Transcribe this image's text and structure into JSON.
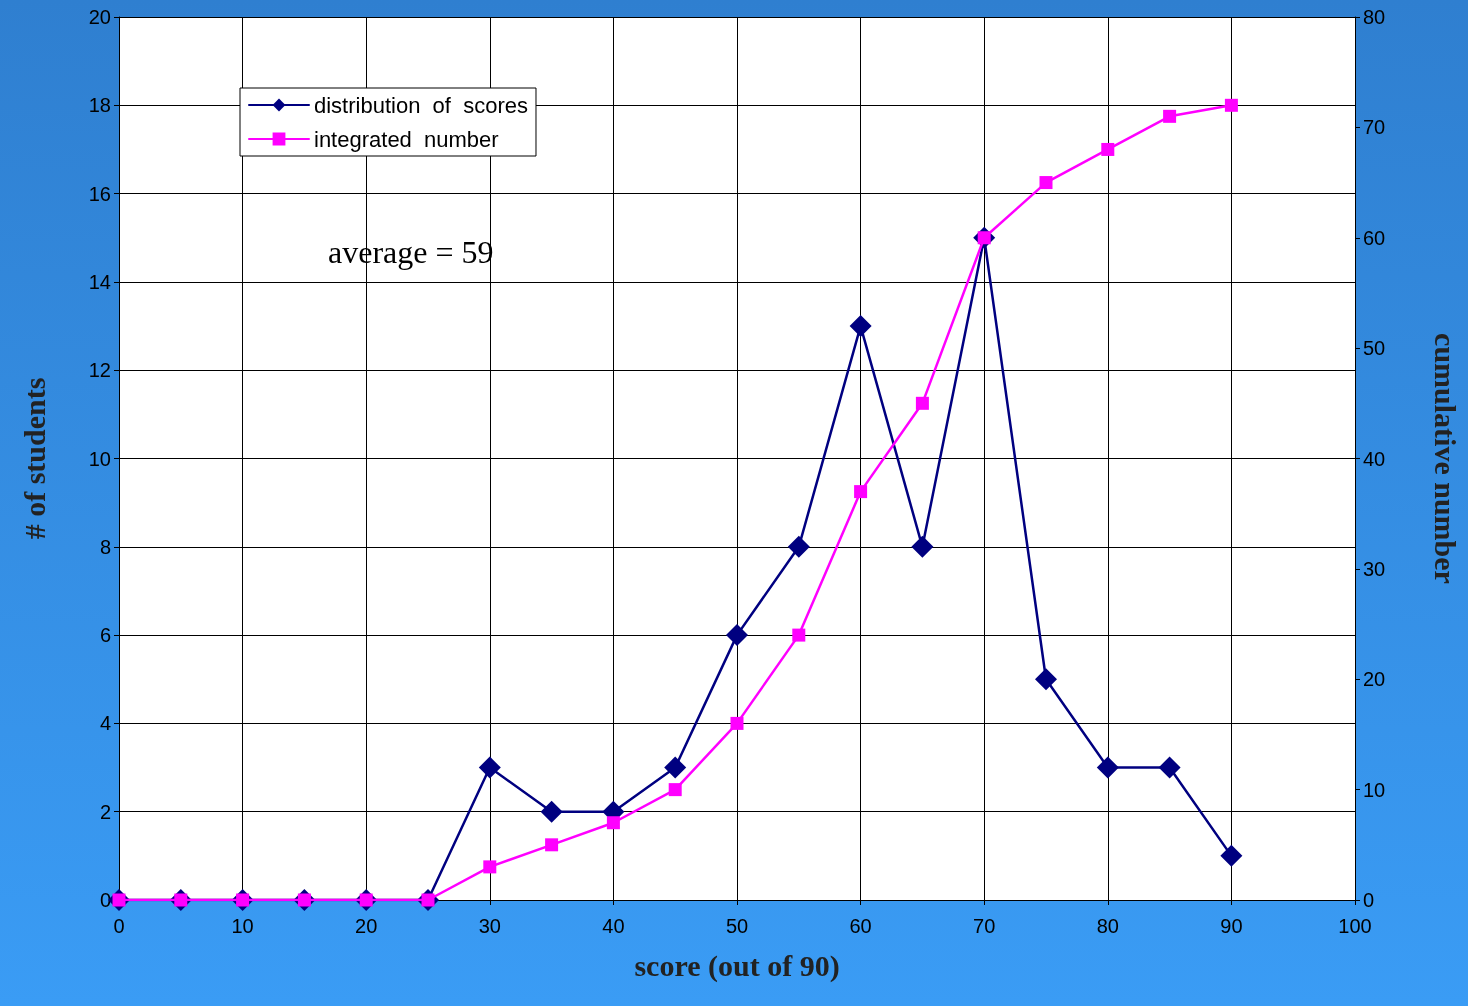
{
  "chart_data": {
    "type": "line",
    "xlabel": "score (out of 90)",
    "ylabel": "# of students",
    "y2label": "cumulative number",
    "x": [
      0,
      5,
      10,
      15,
      20,
      25,
      30,
      35,
      40,
      45,
      50,
      55,
      60,
      65,
      70,
      75,
      80,
      85,
      90
    ],
    "series": [
      {
        "name": "distribution  of  scores",
        "color": "#000080",
        "marker": "diamond",
        "values": [
          0,
          0,
          0,
          0,
          0,
          0,
          3,
          2,
          2,
          3,
          6,
          8,
          13,
          8,
          15,
          5,
          3,
          3,
          1
        ]
      },
      {
        "name": "integrated  number",
        "color": "#ff00ff",
        "marker": "square",
        "axis": "y2",
        "values": [
          0,
          0,
          0,
          0,
          0,
          0,
          3,
          5,
          7,
          10,
          16,
          24,
          37,
          45,
          60,
          65,
          68,
          71,
          72
        ]
      }
    ],
    "xlim": [
      0,
      100
    ],
    "xticks": [
      0,
      10,
      20,
      30,
      40,
      50,
      60,
      70,
      80,
      90,
      100
    ],
    "ylim": [
      0,
      20
    ],
    "yticks": [
      0,
      2,
      4,
      6,
      8,
      10,
      12,
      14,
      16,
      18,
      20
    ],
    "y2lim": [
      0,
      80
    ],
    "y2ticks": [
      0,
      10,
      20,
      30,
      40,
      50,
      60,
      70,
      80
    ],
    "annotations": [
      "average = 59"
    ],
    "grid": true,
    "legend": "top left",
    "line_style": "solid"
  }
}
